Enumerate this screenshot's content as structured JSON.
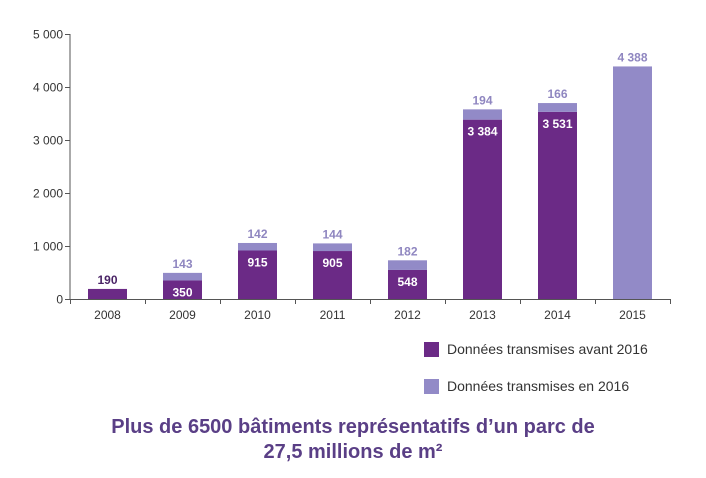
{
  "colors": {
    "before": "#6b2a86",
    "during": "#928ac7",
    "axis": "#555555",
    "grid": "#9a9a9a",
    "title": "#5a3f86"
  },
  "chart_data": {
    "type": "bar",
    "stacked": true,
    "categories": [
      "2008",
      "2009",
      "2010",
      "2011",
      "2012",
      "2013",
      "2014",
      "2015"
    ],
    "series": [
      {
        "name": "Données transmises avant 2016",
        "values": [
          190,
          350,
          915,
          905,
          548,
          3384,
          3531,
          null
        ]
      },
      {
        "name": "Données transmises en 2016",
        "values": [
          null,
          143,
          142,
          144,
          182,
          194,
          166,
          4388
        ]
      }
    ],
    "value_labels": {
      "before": [
        "190",
        "350",
        "915",
        "905",
        "548",
        "3 384",
        "3 531",
        ""
      ],
      "during": [
        "",
        "143",
        "142",
        "144",
        "182",
        "194",
        "166",
        "4 388"
      ]
    },
    "yticks": [
      0,
      1000,
      2000,
      3000,
      4000,
      5000
    ],
    "ytick_labels": [
      "0",
      "1 000",
      "2 000",
      "3 000",
      "4 000",
      "5 000"
    ],
    "ylim": [
      0,
      5000
    ],
    "grid": false,
    "legend_position": "bottom-right",
    "title": "Plus de 6500 bâtiments représentatifs d’un parc de 27,5 millions de m²",
    "title_lines": [
      "Plus de 6500 bâtiments représentatifs d’un parc de",
      "27,5 millions de m²"
    ]
  }
}
